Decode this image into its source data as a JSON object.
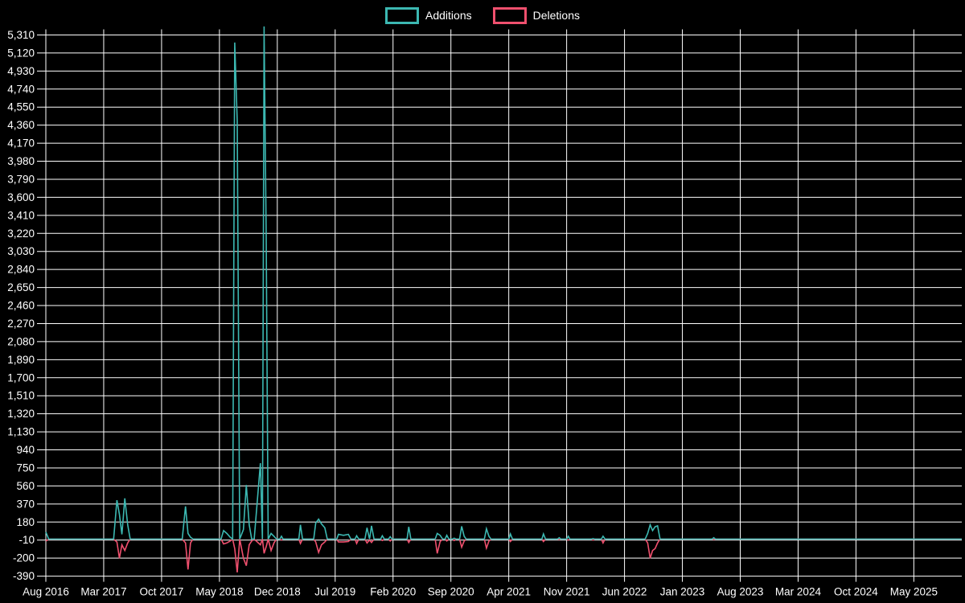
{
  "legend": {
    "items": [
      {
        "label": "Additions",
        "color": "#3cb8b2"
      },
      {
        "label": "Deletions",
        "color": "#f0506e"
      }
    ]
  },
  "chart_data": {
    "type": "line",
    "title": "",
    "description": "Weekly code additions and deletions over time",
    "background_color": "#000000",
    "grid_color": "#ffffff",
    "text_color": "#ffffff",
    "legend_position": "top-center",
    "grid": true,
    "x_axis": {
      "unit": "months since Aug 2016",
      "tick_interval_months": 7,
      "tick_labels": [
        "Aug 2016",
        "Mar 2017",
        "Oct 2017",
        "May 2018",
        "Dec 2018",
        "Jul 2019",
        "Feb 2020",
        "Sep 2020",
        "Apr 2021",
        "Nov 2021",
        "Jun 2022",
        "Jan 2023",
        "Aug 2023",
        "Mar 2024",
        "Oct 2024",
        "May 2025"
      ],
      "domain_months": [
        0,
        110.8
      ]
    },
    "y_axis": {
      "min": -390,
      "max": 5310,
      "tick_step": 190,
      "tick_labels": [
        "-390",
        "-200",
        "-10",
        "180",
        "370",
        "560",
        "750",
        "940",
        "1,130",
        "1,320",
        "1,510",
        "1,700",
        "1,890",
        "2,080",
        "2,270",
        "2,460",
        "2,650",
        "2,840",
        "3,030",
        "3,220",
        "3,410",
        "3,600",
        "3,790",
        "3,980",
        "4,170",
        "4,360",
        "4,550",
        "4,740",
        "4,930",
        "5,120",
        "5,310"
      ]
    },
    "series_meta": [
      {
        "name": "Additions",
        "color": "#3cb8b2"
      },
      {
        "name": "Deletions",
        "color": "#f0506e"
      }
    ],
    "points_format": [
      "month_offset_from_aug_2016",
      "additions",
      "deletions"
    ],
    "points": [
      [
        0,
        75,
        -20
      ],
      [
        0.35,
        0,
        0
      ],
      [
        8.2,
        0,
        0
      ],
      [
        8.6,
        410,
        -30
      ],
      [
        8.9,
        260,
        -200
      ],
      [
        9.2,
        50,
        -60
      ],
      [
        9.55,
        430,
        -120
      ],
      [
        9.9,
        150,
        -40
      ],
      [
        10.2,
        0,
        0
      ],
      [
        16.5,
        0,
        0
      ],
      [
        16.9,
        345,
        -40
      ],
      [
        17.2,
        60,
        -320
      ],
      [
        17.5,
        20,
        -40
      ],
      [
        17.8,
        0,
        0
      ],
      [
        21.2,
        0,
        0
      ],
      [
        21.5,
        90,
        -50
      ],
      [
        21.9,
        60,
        -40
      ],
      [
        22.3,
        20,
        -20
      ],
      [
        22.6,
        0,
        0
      ],
      [
        22.85,
        5230,
        -100
      ],
      [
        23.15,
        4400,
        -350
      ],
      [
        23.45,
        0,
        0
      ],
      [
        23.9,
        100,
        -200
      ],
      [
        24.25,
        570,
        -280
      ],
      [
        24.6,
        150,
        -60
      ],
      [
        24.9,
        0,
        -20
      ],
      [
        25.2,
        0,
        0
      ],
      [
        25.95,
        800,
        -60
      ],
      [
        26.2,
        0,
        0
      ],
      [
        26.4,
        5400,
        -150
      ],
      [
        26.65,
        3200,
        -80
      ],
      [
        26.9,
        0,
        0
      ],
      [
        27.25,
        60,
        -120
      ],
      [
        27.6,
        30,
        -40
      ],
      [
        27.9,
        0,
        0
      ],
      [
        28.3,
        0,
        0
      ],
      [
        28.5,
        30,
        -10
      ],
      [
        28.7,
        0,
        0
      ],
      [
        30.6,
        0,
        0
      ],
      [
        30.8,
        150,
        -45
      ],
      [
        31.05,
        0,
        0
      ],
      [
        32.4,
        0,
        0
      ],
      [
        32.65,
        170,
        -30
      ],
      [
        33,
        210,
        -140
      ],
      [
        33.35,
        160,
        -60
      ],
      [
        33.75,
        120,
        -30
      ],
      [
        34.05,
        0,
        0
      ],
      [
        35.2,
        0,
        0
      ],
      [
        35.4,
        50,
        -30
      ],
      [
        36,
        40,
        -30
      ],
      [
        36.6,
        50,
        -25
      ],
      [
        36.9,
        0,
        0
      ],
      [
        37.4,
        0,
        0
      ],
      [
        37.6,
        35,
        -45
      ],
      [
        37.85,
        0,
        0
      ],
      [
        38.6,
        0,
        0
      ],
      [
        38.85,
        120,
        -40
      ],
      [
        39.15,
        0,
        -10
      ],
      [
        39.4,
        140,
        -35
      ],
      [
        39.7,
        0,
        0
      ],
      [
        40.5,
        0,
        0
      ],
      [
        40.7,
        35,
        -15
      ],
      [
        40.95,
        0,
        0
      ],
      [
        41.45,
        0,
        0
      ],
      [
        41.65,
        25,
        -20
      ],
      [
        41.9,
        0,
        0
      ],
      [
        43.7,
        0,
        0
      ],
      [
        43.9,
        130,
        -35
      ],
      [
        44.15,
        0,
        0
      ],
      [
        47.1,
        0,
        0
      ],
      [
        47.35,
        60,
        -150
      ],
      [
        47.7,
        40,
        -25
      ],
      [
        48,
        0,
        0
      ],
      [
        48.3,
        0,
        0
      ],
      [
        48.5,
        40,
        -20
      ],
      [
        48.75,
        0,
        0
      ],
      [
        49.2,
        0,
        0
      ],
      [
        49.4,
        10,
        -15
      ],
      [
        49.6,
        0,
        0
      ],
      [
        50.05,
        0,
        0
      ],
      [
        50.3,
        135,
        -85
      ],
      [
        50.6,
        30,
        -20
      ],
      [
        50.85,
        0,
        0
      ],
      [
        53.05,
        0,
        0
      ],
      [
        53.3,
        110,
        -95
      ],
      [
        53.6,
        30,
        -20
      ],
      [
        53.85,
        0,
        0
      ],
      [
        56,
        0,
        0
      ],
      [
        56.2,
        55,
        -25
      ],
      [
        56.45,
        0,
        0
      ],
      [
        60,
        0,
        0
      ],
      [
        60.2,
        55,
        -25
      ],
      [
        60.45,
        0,
        0
      ],
      [
        61.9,
        0,
        0
      ],
      [
        62.1,
        15,
        -5
      ],
      [
        62.3,
        0,
        0
      ],
      [
        63,
        0,
        0
      ],
      [
        63.2,
        30,
        -10
      ],
      [
        63.4,
        0,
        0
      ],
      [
        66,
        0,
        0
      ],
      [
        66.2,
        5,
        -10
      ],
      [
        66.4,
        0,
        0
      ],
      [
        67.2,
        0,
        0
      ],
      [
        67.4,
        30,
        -40
      ],
      [
        67.65,
        0,
        0
      ],
      [
        72.5,
        0,
        0
      ],
      [
        72.8,
        60,
        -40
      ],
      [
        73.1,
        150,
        -200
      ],
      [
        73.4,
        90,
        -120
      ],
      [
        73.7,
        130,
        -100
      ],
      [
        74,
        140,
        -40
      ],
      [
        74.3,
        0,
        0
      ],
      [
        80.6,
        0,
        0
      ],
      [
        80.8,
        15,
        -5
      ],
      [
        81,
        0,
        0
      ],
      [
        110.8,
        0,
        0
      ]
    ]
  }
}
